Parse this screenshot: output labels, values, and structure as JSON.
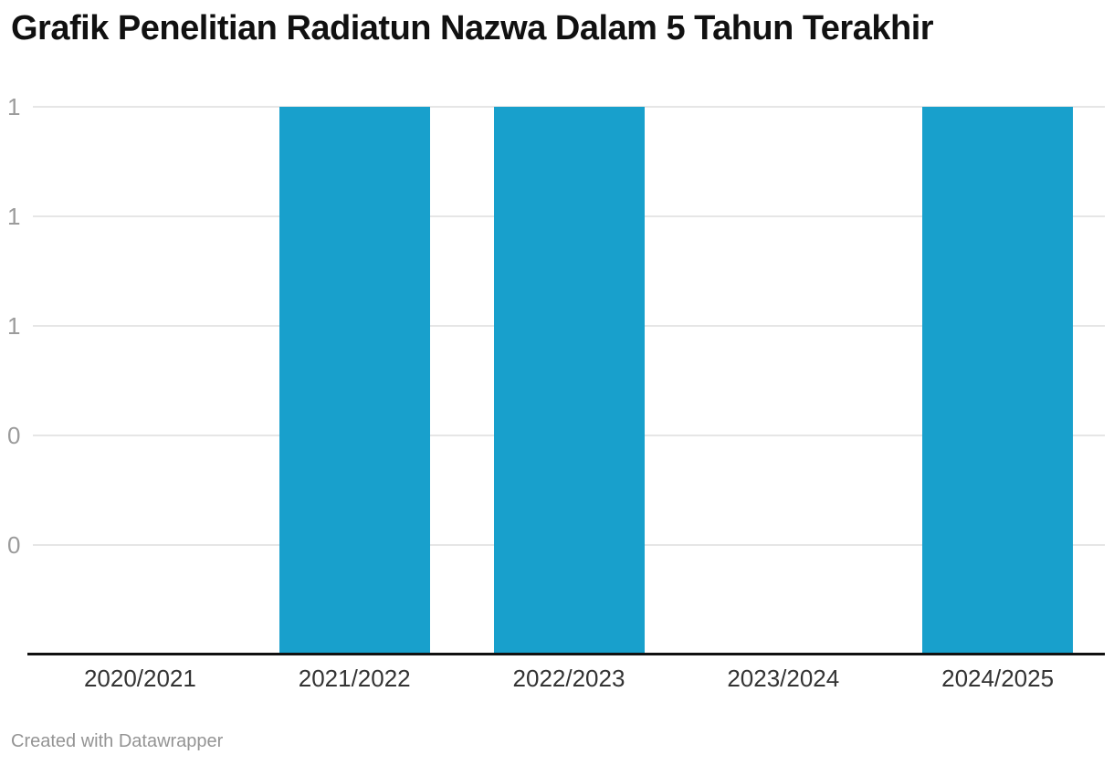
{
  "page": {
    "title": "Grafik Penelitian Radiatun Nazwa Dalam 5 Tahun Terakhir",
    "footer_credit": "Created with Datawrapper"
  },
  "colors": {
    "background": "#ffffff",
    "bar": "#18a0cc",
    "grid": "#e6e6e6",
    "axis": "#111111",
    "title": "#111111",
    "y_tick_label": "#9b9b9b",
    "x_tick_label": "#333333",
    "footer": "#949494"
  },
  "chart_data": {
    "type": "bar",
    "title": "Grafik Penelitian Radiatun Nazwa Dalam 5 Tahun Terakhir",
    "categories": [
      "2020/2021",
      "2021/2022",
      "2022/2023",
      "2023/2024",
      "2024/2025"
    ],
    "values": [
      0,
      1,
      1,
      0,
      1
    ],
    "xlabel": "",
    "ylabel": "",
    "ylim": [
      0,
      1
    ],
    "grid": true,
    "legend": false,
    "y_ticks": [
      {
        "value": 1.0,
        "label": "1"
      },
      {
        "value": 0.8,
        "label": "1"
      },
      {
        "value": 0.6,
        "label": "1"
      },
      {
        "value": 0.4,
        "label": "0"
      },
      {
        "value": 0.2,
        "label": "0"
      }
    ],
    "bar_color": "#18a0cc",
    "credit": "Created with Datawrapper"
  }
}
